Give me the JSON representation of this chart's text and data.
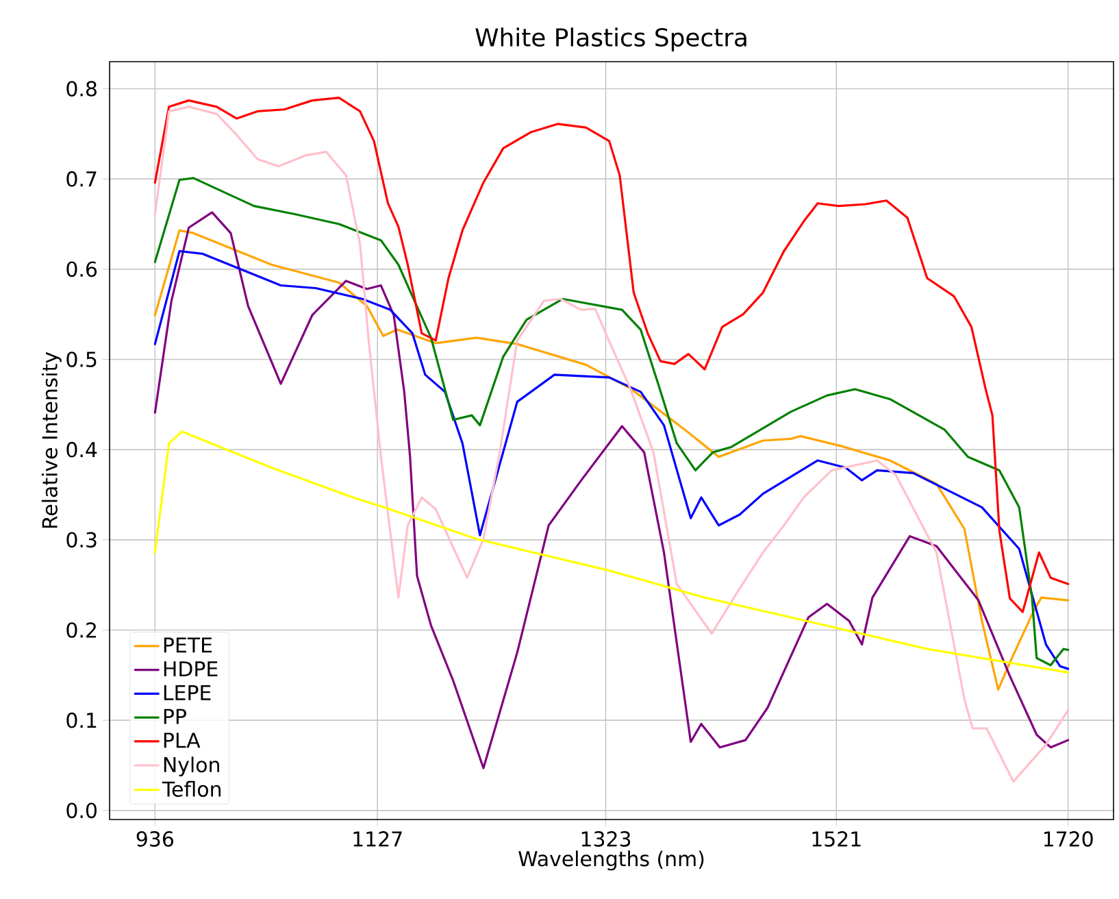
{
  "chart_data": {
    "type": "line",
    "title": "White Plastics Spectra",
    "xlabel": "Wavelengths (nm)",
    "ylabel": "Relative Intensity",
    "xlim": [
      897,
      1759
    ],
    "ylim": [
      -0.01,
      0.83
    ],
    "xticks": [
      936,
      1127,
      1323,
      1521,
      1720
    ],
    "yticks": [
      {
        "value": 0,
        "label": "0.0"
      },
      0.1,
      0.2,
      0.3,
      0.4,
      0.5,
      0.6,
      0.7,
      0.8
    ],
    "grid": true,
    "legend": "bottom left",
    "series": [
      {
        "name": "PETE",
        "color": "#ffa500",
        "x": [
          936,
          957,
          969,
          1036,
          1094,
          1118,
          1132,
          1144,
          1177,
          1212,
          1247,
          1306,
          1344,
          1391,
          1420,
          1458,
          1482,
          1490,
          1525,
          1567,
          1607,
          1631,
          1646,
          1660,
          1670,
          1690,
          1697,
          1720
        ],
        "values": [
          0.549,
          0.643,
          0.64,
          0.605,
          0.585,
          0.559,
          0.526,
          0.533,
          0.518,
          0.524,
          0.517,
          0.494,
          0.468,
          0.422,
          0.392,
          0.41,
          0.412,
          0.415,
          0.404,
          0.388,
          0.362,
          0.312,
          0.21,
          0.134,
          0.164,
          0.22,
          0.236,
          0.233
        ]
      },
      {
        "name": "HDPE",
        "color": "#800080",
        "x": [
          936,
          950,
          965,
          985,
          1001,
          1016,
          1044,
          1071,
          1100,
          1118,
          1130,
          1141,
          1150,
          1155,
          1161,
          1173,
          1192,
          1218,
          1247,
          1274,
          1302,
          1337,
          1356,
          1373,
          1396,
          1405,
          1421,
          1443,
          1462,
          1497,
          1513,
          1532,
          1543,
          1552,
          1584,
          1607,
          1643,
          1670,
          1693,
          1705,
          1720
        ],
        "values": [
          0.441,
          0.564,
          0.646,
          0.663,
          0.64,
          0.559,
          0.473,
          0.549,
          0.587,
          0.578,
          0.582,
          0.549,
          0.464,
          0.392,
          0.26,
          0.205,
          0.144,
          0.047,
          0.175,
          0.316,
          0.366,
          0.426,
          0.397,
          0.286,
          0.076,
          0.096,
          0.07,
          0.078,
          0.114,
          0.214,
          0.229,
          0.21,
          0.184,
          0.236,
          0.304,
          0.293,
          0.233,
          0.149,
          0.084,
          0.07,
          0.078
        ]
      },
      {
        "name": "LEPE",
        "color": "#0000ff",
        "x": [
          936,
          957,
          977,
          1044,
          1074,
          1114,
          1138,
          1157,
          1168,
          1185,
          1200,
          1215,
          1247,
          1279,
          1326,
          1353,
          1373,
          1396,
          1405,
          1420,
          1438,
          1458,
          1505,
          1529,
          1543,
          1556,
          1587,
          1646,
          1678,
          1701,
          1713,
          1720
        ],
        "values": [
          0.517,
          0.62,
          0.617,
          0.582,
          0.579,
          0.567,
          0.555,
          0.529,
          0.483,
          0.464,
          0.407,
          0.305,
          0.453,
          0.483,
          0.48,
          0.464,
          0.427,
          0.324,
          0.347,
          0.316,
          0.328,
          0.351,
          0.388,
          0.38,
          0.366,
          0.377,
          0.374,
          0.336,
          0.29,
          0.184,
          0.16,
          0.157
        ]
      },
      {
        "name": "PP",
        "color": "#008000",
        "x": [
          936,
          957,
          969,
          1021,
          1056,
          1094,
          1130,
          1145,
          1157,
          1173,
          1192,
          1208,
          1215,
          1235,
          1255,
          1286,
          1337,
          1353,
          1368,
          1384,
          1400,
          1415,
          1431,
          1482,
          1513,
          1537,
          1567,
          1614,
          1634,
          1661,
          1678,
          1689,
          1693,
          1705,
          1716,
          1720
        ],
        "values": [
          0.608,
          0.699,
          0.701,
          0.67,
          0.661,
          0.65,
          0.632,
          0.605,
          0.57,
          0.524,
          0.433,
          0.438,
          0.427,
          0.503,
          0.544,
          0.567,
          0.555,
          0.533,
          0.473,
          0.407,
          0.377,
          0.397,
          0.403,
          0.442,
          0.46,
          0.467,
          0.456,
          0.422,
          0.392,
          0.377,
          0.336,
          0.236,
          0.169,
          0.161,
          0.179,
          0.178
        ]
      },
      {
        "name": "PLA",
        "color": "#ff0000",
        "x": [
          936,
          948,
          965,
          989,
          1006,
          1024,
          1047,
          1071,
          1094,
          1112,
          1124,
          1136,
          1145,
          1153,
          1165,
          1177,
          1188,
          1200,
          1218,
          1235,
          1259,
          1282,
          1306,
          1326,
          1335,
          1347,
          1359,
          1370,
          1382,
          1394,
          1408,
          1423,
          1441,
          1458,
          1476,
          1493,
          1505,
          1523,
          1546,
          1564,
          1582,
          1599,
          1622,
          1637,
          1649,
          1655,
          1661,
          1670,
          1681,
          1695,
          1705,
          1720
        ],
        "values": [
          0.696,
          0.78,
          0.787,
          0.78,
          0.767,
          0.775,
          0.777,
          0.787,
          0.79,
          0.775,
          0.742,
          0.673,
          0.647,
          0.605,
          0.529,
          0.521,
          0.59,
          0.643,
          0.696,
          0.734,
          0.752,
          0.761,
          0.757,
          0.742,
          0.704,
          0.574,
          0.529,
          0.498,
          0.495,
          0.506,
          0.489,
          0.536,
          0.55,
          0.574,
          0.62,
          0.653,
          0.673,
          0.67,
          0.672,
          0.676,
          0.657,
          0.59,
          0.57,
          0.536,
          0.468,
          0.438,
          0.31,
          0.235,
          0.22,
          0.286,
          0.258,
          0.251
        ]
      },
      {
        "name": "Nylon",
        "color": "#ffc0cb",
        "x": [
          936,
          948,
          965,
          989,
          1006,
          1024,
          1042,
          1065,
          1083,
          1100,
          1112,
          1120,
          1130,
          1145,
          1153,
          1165,
          1177,
          1194,
          1204,
          1218,
          1232,
          1247,
          1270,
          1284,
          1302,
          1314,
          1326,
          1344,
          1364,
          1384,
          1414,
          1435,
          1458,
          1476,
          1493,
          1517,
          1556,
          1572,
          1607,
          1631,
          1638,
          1650,
          1673,
          1701,
          1720
        ],
        "values": [
          0.661,
          0.775,
          0.78,
          0.772,
          0.749,
          0.722,
          0.714,
          0.726,
          0.73,
          0.704,
          0.628,
          0.514,
          0.392,
          0.236,
          0.316,
          0.347,
          0.334,
          0.286,
          0.258,
          0.301,
          0.397,
          0.521,
          0.565,
          0.567,
          0.555,
          0.556,
          0.52,
          0.468,
          0.397,
          0.251,
          0.196,
          0.24,
          0.286,
          0.316,
          0.347,
          0.377,
          0.388,
          0.372,
          0.286,
          0.123,
          0.091,
          0.091,
          0.032,
          0.073,
          0.111
        ]
      },
      {
        "name": "Teflon",
        "color": "#ffff00",
        "x": [
          936,
          948,
          959,
          1036,
          1106,
          1133,
          1212,
          1326,
          1408,
          1482,
          1599,
          1720
        ],
        "values": [
          0.286,
          0.407,
          0.42,
          0.38,
          0.347,
          0.336,
          0.301,
          0.266,
          0.236,
          0.214,
          0.179,
          0.153
        ]
      }
    ]
  }
}
